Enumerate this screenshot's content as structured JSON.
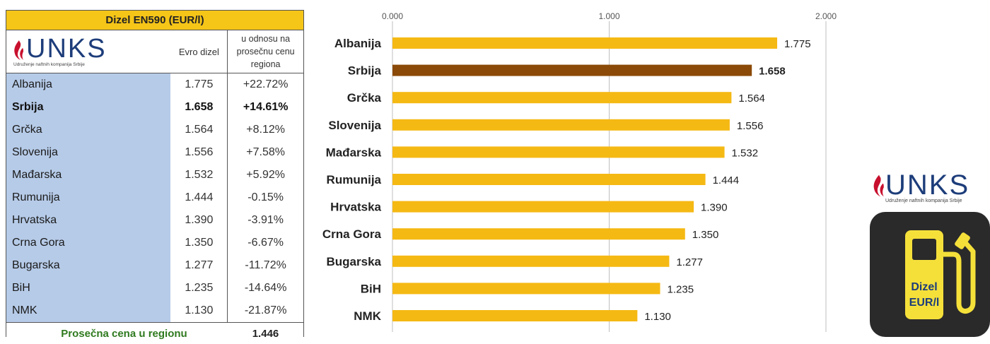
{
  "table": {
    "title": "Dizel EN590 (EUR/l)",
    "col_value": "Evro dizel",
    "col_rel_line1": "u odnosu na",
    "col_rel_line2": "prosečnu cenu",
    "col_rel_line3": "regiona",
    "rows": [
      {
        "country": "Albanija",
        "value": "1.775",
        "pct": "+22.72%"
      },
      {
        "country": "Srbija",
        "value": "1.658",
        "pct": "+14.61%"
      },
      {
        "country": "Grčka",
        "value": "1.564",
        "pct": "+8.12%"
      },
      {
        "country": "Slovenija",
        "value": "1.556",
        "pct": "+7.58%"
      },
      {
        "country": "Mađarska",
        "value": "1.532",
        "pct": "+5.92%"
      },
      {
        "country": "Rumunija",
        "value": "1.444",
        "pct": "-0.15%"
      },
      {
        "country": "Hrvatska",
        "value": "1.390",
        "pct": "-3.91%"
      },
      {
        "country": "Crna Gora",
        "value": "1.350",
        "pct": "-6.67%"
      },
      {
        "country": "Bugarska",
        "value": "1.277",
        "pct": "-11.72%"
      },
      {
        "country": "BiH",
        "value": "1.235",
        "pct": "-14.64%"
      },
      {
        "country": "NMK",
        "value": "1.130",
        "pct": "-21.87%"
      }
    ],
    "highlight_row": "Srbija",
    "footer_label": "Prosečna cena u regionu",
    "footer_value": "1.446"
  },
  "logo": {
    "word": "UNKS",
    "tagline": "Udruženje naftnih kompanija Srbije"
  },
  "tile": {
    "line1": "Dizel",
    "line2": "EUR/l",
    "icon": "fuel-pump-icon"
  },
  "colors": {
    "bar": "#f5b914",
    "bar_highlight": "#8b4a08",
    "table_title_bg": "#f5c518",
    "country_col_bg": "#b6cbe8",
    "footer_label": "#2f7a1f",
    "brand_blue": "#1d3d7a",
    "flame_red": "#c8102e"
  },
  "chart_data": {
    "type": "bar",
    "orientation": "horizontal",
    "categories": [
      "Albanija",
      "Srbija",
      "Grčka",
      "Slovenija",
      "Mađarska",
      "Rumunija",
      "Hrvatska",
      "Crna Gora",
      "Bugarska",
      "BiH",
      "NMK"
    ],
    "values": [
      1.775,
      1.658,
      1.564,
      1.556,
      1.532,
      1.444,
      1.39,
      1.35,
      1.277,
      1.235,
      1.13
    ],
    "value_labels": [
      "1.775",
      "1.658",
      "1.564",
      "1.556",
      "1.532",
      "1.444",
      "1.390",
      "1.350",
      "1.277",
      "1.235",
      "1.130"
    ],
    "xlim": [
      0,
      2.0
    ],
    "x_ticks": [
      0,
      1,
      2
    ],
    "x_tick_labels": [
      "0.000",
      "1.000",
      "2.000"
    ],
    "axis_position": "top",
    "highlight": "Srbija",
    "grid": true,
    "title": "",
    "xlabel": "",
    "ylabel": ""
  }
}
